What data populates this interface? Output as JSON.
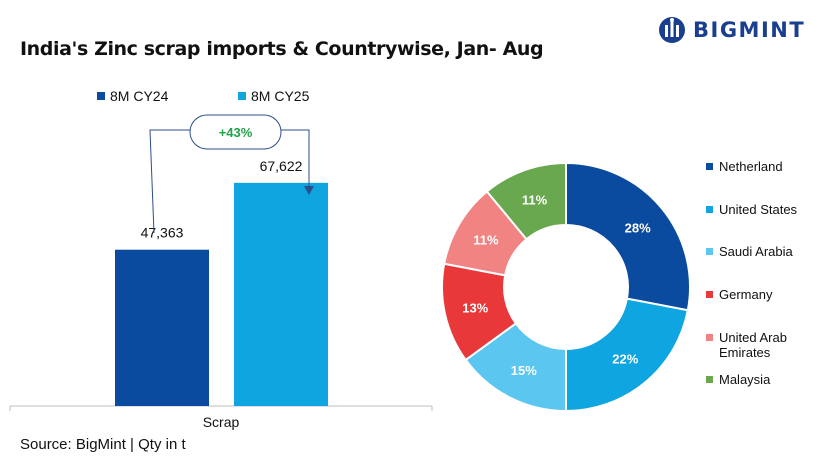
{
  "title": "India's Zinc scrap imports & Countrywise, Jan- Aug",
  "logo": {
    "text": "BIGMINT"
  },
  "source": "Source: BigMint | Qty in t",
  "colors": {
    "cy24": "#0a4a9f",
    "cy25": "#0ea5e0",
    "growth": "#22a24a",
    "logo": "#1b3f8f"
  },
  "chart_data": [
    {
      "type": "bar",
      "categories": [
        "Scrap"
      ],
      "series": [
        {
          "name": "8M CY24",
          "values": [
            47363
          ],
          "labels": [
            "47,363"
          ],
          "color": "#0a4a9f"
        },
        {
          "name": "8M CY25",
          "values": [
            67622
          ],
          "labels": [
            "67,622"
          ],
          "color": "#0ea5e0"
        }
      ],
      "annotation": "+43%",
      "ylim": [
        0,
        100000
      ],
      "legend": "top-left",
      "grid": false
    },
    {
      "type": "pie",
      "donut": true,
      "labels": [
        "Netherland",
        "United States",
        "Saudi Arabia",
        "Germany",
        "United Arab Emirates",
        "Malaysia"
      ],
      "legend_labels": [
        [
          "Netherland"
        ],
        [
          "United States"
        ],
        [
          "Saudi Arabia"
        ],
        [
          "Germany"
        ],
        [
          "United Arab",
          "Emirates"
        ],
        [
          "Malaysia"
        ]
      ],
      "values": [
        28,
        22,
        15,
        13,
        11,
        11
      ],
      "value_labels": [
        "28%",
        "22%",
        "15%",
        "13%",
        "11%",
        "11%"
      ],
      "colors": [
        "#0a4a9f",
        "#0ea5e0",
        "#5bc6ef",
        "#e8383a",
        "#f28383",
        "#6aa84f"
      ],
      "legend": "right"
    }
  ]
}
